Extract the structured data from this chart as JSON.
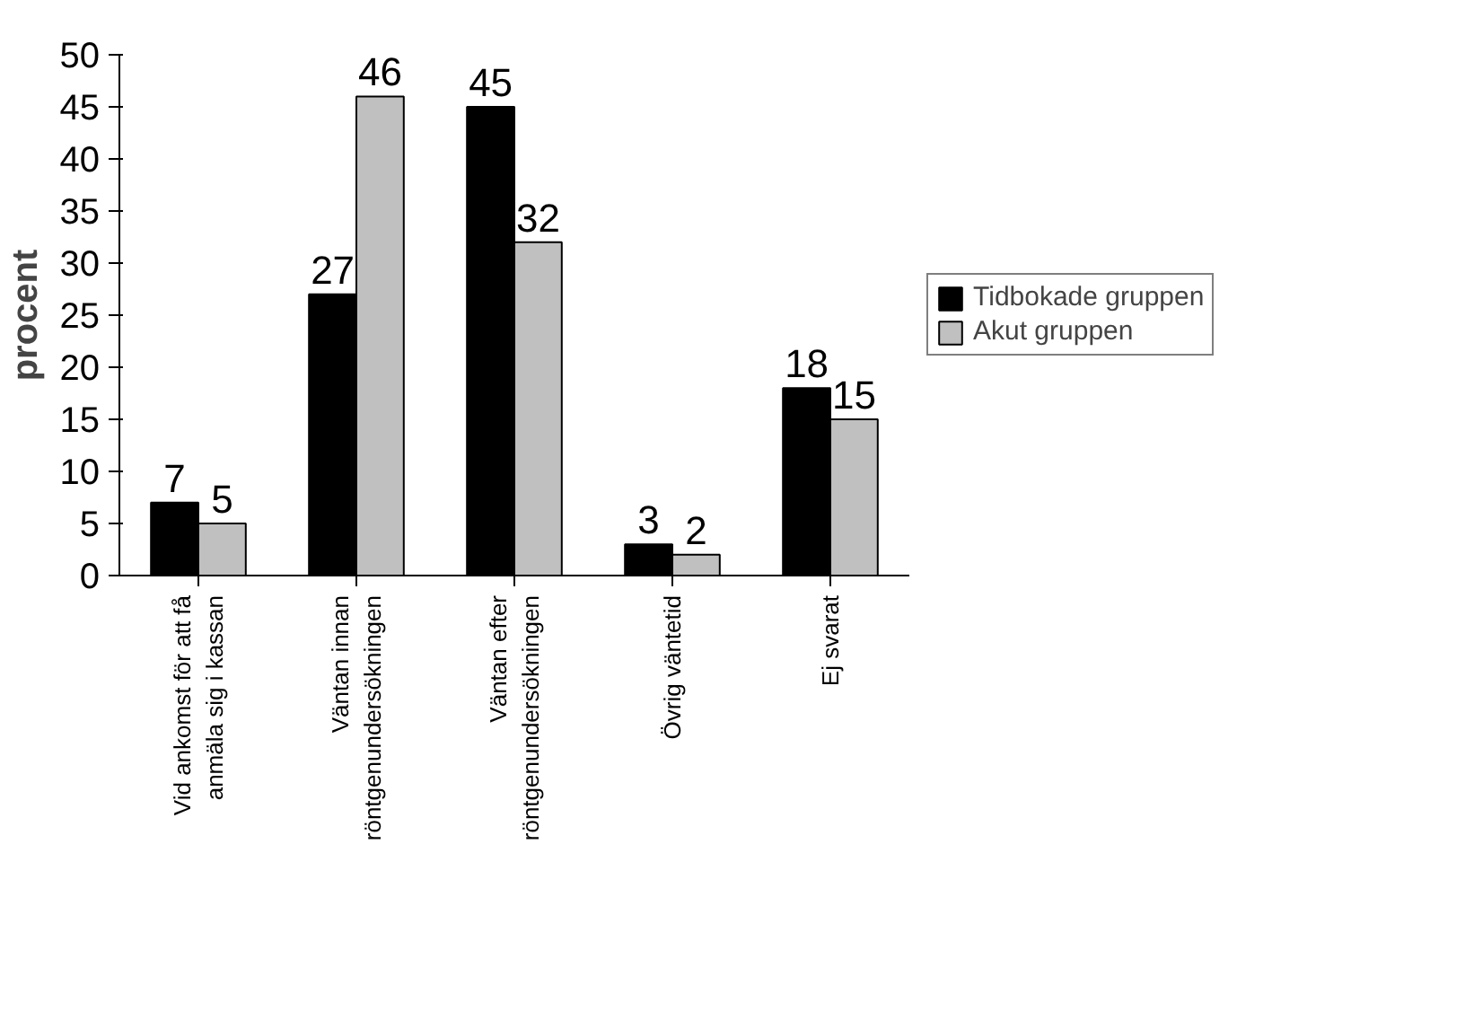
{
  "chart_data": {
    "type": "bar",
    "ylabel": "procent",
    "categories": [
      "Vid ankomst för att få anmäla sig i kassan",
      "Väntan innan röntgenundersökningen",
      "Väntan efter röntgenundersökningen",
      "Övrig väntetid",
      "Ej svarat"
    ],
    "series": [
      {
        "name": "Tidbokade gruppen",
        "color": "#000000",
        "values": [
          7,
          27,
          45,
          3,
          18
        ]
      },
      {
        "name": "Akut gruppen",
        "color": "#c0c0c0",
        "values": [
          5,
          46,
          32,
          2,
          15
        ]
      }
    ],
    "ylim": [
      0,
      50
    ],
    "yticks": [
      0,
      5,
      10,
      15,
      20,
      25,
      30,
      35,
      40,
      45,
      50
    ],
    "data_labels": true,
    "grid": false,
    "legend": "right"
  }
}
